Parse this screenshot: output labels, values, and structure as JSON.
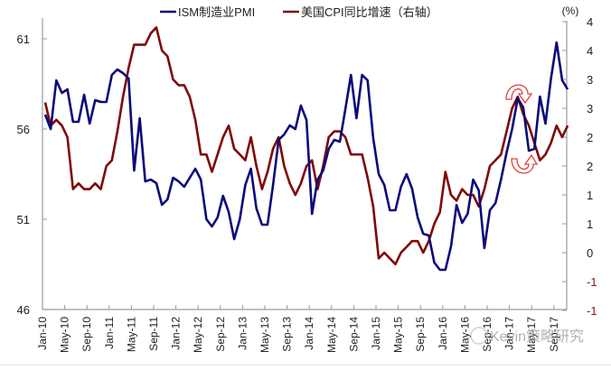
{
  "chart_data": {
    "type": "line",
    "title": "",
    "legend": [
      {
        "name": "ISM制造业PMI",
        "color": "#0b0b7a",
        "axis": "left"
      },
      {
        "name": "美国CPI同比增速（右轴）",
        "color": "#7f0a0a",
        "axis": "right"
      }
    ],
    "legend_position": "top",
    "xlabel": "",
    "ylabel_left": "",
    "ylabel_right": "(%)",
    "x_tick_labels": [
      "Jan-10",
      "May-10",
      "Sep-10",
      "Jan-11",
      "May-11",
      "Sep-11",
      "Jan-12",
      "May-12",
      "Sep-12",
      "Jan-13",
      "May-13",
      "Sep-13",
      "Jan-14",
      "May-14",
      "Sep-14",
      "Jan-15",
      "May-15",
      "Sep-15",
      "Jan-16",
      "May-16",
      "Sep-16",
      "Jan-17",
      "May-17",
      "Sep-17"
    ],
    "y_left_ticks": [
      46,
      51,
      56,
      61
    ],
    "y_left_range": [
      46,
      62
    ],
    "y_right_tick_labels": [
      "-1",
      "-1",
      "0",
      "1",
      "1",
      "2",
      "2",
      "3",
      "3",
      "4",
      "4"
    ],
    "y_right_tick_values": [
      -1.0,
      -0.5,
      0,
      0.5,
      1.0,
      1.5,
      2.0,
      2.5,
      3.0,
      3.5,
      4.0
    ],
    "y_right_range": [
      -1,
      4
    ],
    "grid": false,
    "annotations": [
      "red outlined curved arrow at CPI peak (Feb-17)",
      "red outlined curved arrow at CPI trough (Jun-17)"
    ],
    "watermark": "Kevin策略研究",
    "x": [
      "Jan-10",
      "Feb-10",
      "Mar-10",
      "Apr-10",
      "May-10",
      "Jun-10",
      "Jul-10",
      "Aug-10",
      "Sep-10",
      "Oct-10",
      "Nov-10",
      "Dec-10",
      "Jan-11",
      "Feb-11",
      "Mar-11",
      "Apr-11",
      "May-11",
      "Jun-11",
      "Jul-11",
      "Aug-11",
      "Sep-11",
      "Oct-11",
      "Nov-11",
      "Dec-11",
      "Jan-12",
      "Feb-12",
      "Mar-12",
      "Apr-12",
      "May-12",
      "Jun-12",
      "Jul-12",
      "Aug-12",
      "Sep-12",
      "Oct-12",
      "Nov-12",
      "Dec-12",
      "Jan-13",
      "Feb-13",
      "Mar-13",
      "Apr-13",
      "May-13",
      "Jun-13",
      "Jul-13",
      "Aug-13",
      "Sep-13",
      "Oct-13",
      "Nov-13",
      "Dec-13",
      "Jan-14",
      "Feb-14",
      "Mar-14",
      "Apr-14",
      "May-14",
      "Jun-14",
      "Jul-14",
      "Aug-14",
      "Sep-14",
      "Oct-14",
      "Nov-14",
      "Dec-14",
      "Jan-15",
      "Feb-15",
      "Mar-15",
      "Apr-15",
      "May-15",
      "Jun-15",
      "Jul-15",
      "Aug-15",
      "Sep-15",
      "Oct-15",
      "Nov-15",
      "Dec-15",
      "Jan-16",
      "Feb-16",
      "Mar-16",
      "Apr-16",
      "May-16",
      "Jun-16",
      "Jul-16",
      "Aug-16",
      "Sep-16",
      "Oct-16",
      "Nov-16",
      "Dec-16",
      "Jan-17",
      "Feb-17",
      "Mar-17",
      "Apr-17",
      "May-17",
      "Jun-17",
      "Jul-17",
      "Aug-17",
      "Sep-17",
      "Oct-17",
      "Nov-17"
    ],
    "series": [
      {
        "name": "ISM制造业PMI",
        "axis": "left",
        "values": [
          56.8,
          56.0,
          58.7,
          58.0,
          58.2,
          56.4,
          56.4,
          57.9,
          56.3,
          57.6,
          57.5,
          57.5,
          59.0,
          59.3,
          59.1,
          58.8,
          53.7,
          56.6,
          53.1,
          53.2,
          53.0,
          51.8,
          52.1,
          53.3,
          53.1,
          52.8,
          53.3,
          53.8,
          53.2,
          51.0,
          50.6,
          51.1,
          52.3,
          51.4,
          49.9,
          51.0,
          52.9,
          53.8,
          51.6,
          50.7,
          50.7,
          52.9,
          55.4,
          55.7,
          56.2,
          56.0,
          57.3,
          56.5,
          51.3,
          53.2,
          53.7,
          54.9,
          55.4,
          55.3,
          57.1,
          59.0,
          56.6,
          59.0,
          58.7,
          55.5,
          53.5,
          52.9,
          51.5,
          51.5,
          52.8,
          53.5,
          52.7,
          51.1,
          50.2,
          50.1,
          48.6,
          48.2,
          48.2,
          49.5,
          51.8,
          50.8,
          51.3,
          53.2,
          52.6,
          49.4,
          51.5,
          51.9,
          53.2,
          54.7,
          56.0,
          57.7,
          57.2,
          54.8,
          54.9,
          57.8,
          56.3,
          58.8,
          60.8,
          58.7,
          58.2
        ]
      },
      {
        "name": "美国CPI同比增速（右轴）",
        "axis": "right",
        "values": [
          2.6,
          2.2,
          2.3,
          2.2,
          2.0,
          1.1,
          1.2,
          1.1,
          1.1,
          1.2,
          1.1,
          1.5,
          1.6,
          2.1,
          2.7,
          3.2,
          3.6,
          3.6,
          3.6,
          3.8,
          3.9,
          3.5,
          3.4,
          3.0,
          2.9,
          2.9,
          2.7,
          2.3,
          1.7,
          1.7,
          1.4,
          1.7,
          2.0,
          2.2,
          1.8,
          1.7,
          1.6,
          2.0,
          1.5,
          1.1,
          1.4,
          1.8,
          2.0,
          1.5,
          1.2,
          1.0,
          1.2,
          1.5,
          1.6,
          1.1,
          1.5,
          2.0,
          2.1,
          2.1,
          2.0,
          1.7,
          1.7,
          1.7,
          1.3,
          0.8,
          -0.1,
          0.0,
          -0.1,
          -0.2,
          0.0,
          0.1,
          0.2,
          0.2,
          0.0,
          0.2,
          0.5,
          0.7,
          1.4,
          1.0,
          0.9,
          1.1,
          1.0,
          1.0,
          0.8,
          1.1,
          1.5,
          1.6,
          1.7,
          2.1,
          2.5,
          2.7,
          2.4,
          2.2,
          1.9,
          1.6,
          1.7,
          1.9,
          2.2,
          2.0,
          2.2
        ]
      }
    ]
  },
  "colors": {
    "pmi_line": "#0b0b7a",
    "cpi_line": "#7f0a0a",
    "axis": "#9a9a9a",
    "negative_tick_label": "#8b1a1a",
    "annotation_arrow": "#e04040"
  }
}
